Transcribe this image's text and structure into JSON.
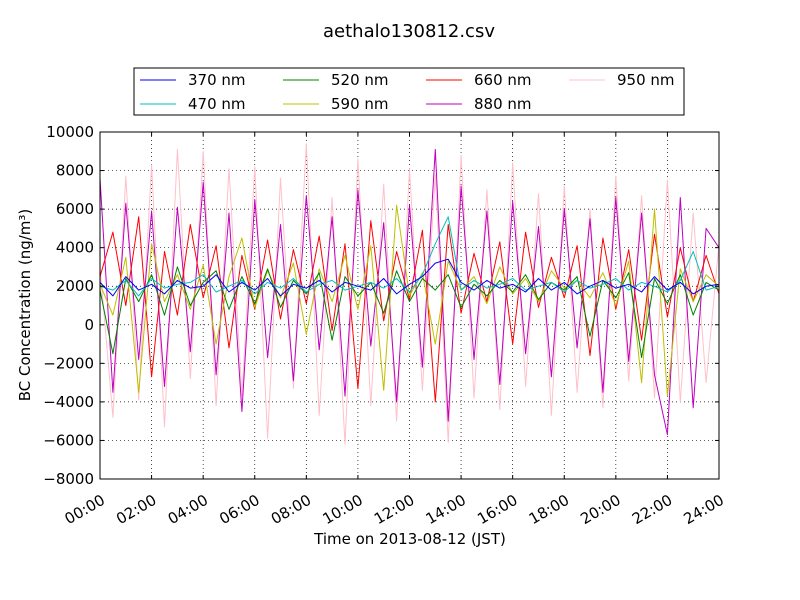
{
  "chart_data": {
    "type": "line",
    "title": "aethalo130812.csv",
    "xlabel": "Time on 2013-08-12 (JST)",
    "ylabel": "BC Concentration (ng/m³)",
    "x_range": [
      "00:00",
      "24:00"
    ],
    "x_ticks": [
      "00:00",
      "02:00",
      "04:00",
      "06:00",
      "08:00",
      "10:00",
      "12:00",
      "14:00",
      "16:00",
      "18:00",
      "20:00",
      "22:00",
      "24:00"
    ],
    "ylim": [
      -8000,
      10000
    ],
    "y_ticks": [
      "−8000",
      "−6000",
      "−4000",
      "−2000",
      "0",
      "2000",
      "4000",
      "6000",
      "8000",
      "10000"
    ],
    "grid": "dotted",
    "legend_placement": "top, above plot, 4 columns",
    "x_times": [
      "00:00",
      "00:30",
      "01:00",
      "01:30",
      "02:00",
      "02:30",
      "03:00",
      "03:30",
      "04:00",
      "04:30",
      "05:00",
      "05:30",
      "06:00",
      "06:30",
      "07:00",
      "07:30",
      "08:00",
      "08:30",
      "09:00",
      "09:30",
      "10:00",
      "10:30",
      "11:00",
      "11:30",
      "12:00",
      "12:30",
      "13:00",
      "13:30",
      "14:00",
      "14:30",
      "15:00",
      "15:30",
      "16:00",
      "16:30",
      "17:00",
      "17:30",
      "18:00",
      "18:30",
      "19:00",
      "19:30",
      "20:00",
      "20:30",
      "21:00",
      "21:30",
      "22:00",
      "22:30",
      "23:00",
      "23:30",
      "24:00"
    ],
    "series": [
      {
        "name": "370 nm",
        "color": "#0000ff",
        "values": [
          2200,
          1500,
          2500,
          1800,
          2100,
          1600,
          2300,
          1900,
          2000,
          2600,
          1700,
          2200,
          1800,
          2400,
          1500,
          2100,
          1900,
          2300,
          1700,
          2200,
          2000,
          1800,
          2400,
          1600,
          2100,
          2500,
          3200,
          3400,
          2200,
          1800,
          2300,
          1900,
          2100,
          1700,
          2400,
          1800,
          2200,
          1600,
          2000,
          2300,
          1900,
          2100,
          1700,
          2500,
          1800,
          2200,
          1600,
          2000,
          2100
        ]
      },
      {
        "name": "470 nm",
        "color": "#00bfbf",
        "values": [
          2000,
          1800,
          2300,
          1500,
          2400,
          1900,
          2100,
          2200,
          2600,
          1700,
          2000,
          2300,
          1600,
          2200,
          1900,
          2400,
          1700,
          2100,
          2300,
          1800,
          2000,
          2200,
          1900,
          2400,
          1700,
          2600,
          4200,
          5600,
          1800,
          2300,
          1900,
          2100,
          2400,
          1800,
          2000,
          2200,
          1700,
          2300,
          1900,
          2100,
          2400,
          1800,
          2200,
          2000,
          1700,
          2300,
          3800,
          1800,
          2000
        ]
      },
      {
        "name": "520 nm",
        "color": "#008000",
        "values": [
          1800,
          -1500,
          2400,
          1200,
          2600,
          500,
          3000,
          1000,
          2200,
          2800,
          800,
          2500,
          1100,
          2900,
          900,
          2300,
          1600,
          2700,
          -800,
          2500,
          1500,
          2200,
          600,
          2800,
          1200,
          2400,
          1800,
          2600,
          900,
          2100,
          1500,
          2300,
          1700,
          2600,
          1300,
          2200,
          1800,
          2500,
          -600,
          2300,
          1400,
          2700,
          -1700,
          2400,
          1100,
          2600,
          500,
          2200,
          1800
        ]
      },
      {
        "name": "590 nm",
        "color": "#bfbf00",
        "values": [
          2100,
          500,
          3500,
          -3500,
          4200,
          1200,
          2600,
          800,
          3100,
          -1000,
          2500,
          4500,
          900,
          2800,
          1400,
          3200,
          -500,
          2900,
          1200,
          3600,
          800,
          4100,
          -3400,
          6200,
          1500,
          2700,
          -1000,
          3300,
          1800,
          2500,
          1100,
          3000,
          1600,
          2400,
          1200,
          2800,
          1900,
          2300,
          1400,
          2700,
          1000,
          3300,
          -3000,
          6000,
          -3700,
          2900,
          1200,
          2600,
          2000
        ]
      },
      {
        "name": "660 nm",
        "color": "#ff0000",
        "values": [
          2500,
          4800,
          1000,
          5600,
          -2700,
          3800,
          500,
          5200,
          1400,
          4100,
          -1200,
          3600,
          800,
          4400,
          300,
          3900,
          1100,
          4600,
          -300,
          4200,
          -3300,
          5400,
          200,
          3800,
          1300,
          4900,
          -4000,
          5200,
          600,
          3700,
          1200,
          4300,
          -1000,
          4800,
          900,
          3500,
          1400,
          4100,
          -1600,
          4500,
          800,
          3900,
          -800,
          4700,
          400,
          4000,
          1200,
          3600,
          1600
        ]
      },
      {
        "name": "880 nm",
        "color": "#bf00bf",
        "values": [
          7600,
          -3500,
          6300,
          -1800,
          5900,
          -3200,
          6100,
          -1400,
          7400,
          -2600,
          5800,
          -4500,
          6500,
          -1700,
          5200,
          -2900,
          6700,
          -1300,
          5600,
          -3700,
          7000,
          -1100,
          5300,
          -4000,
          6200,
          -2200,
          9100,
          -5000,
          7200,
          -1800,
          5900,
          -3100,
          6400,
          -1500,
          5100,
          -2700,
          6000,
          -1200,
          5500,
          -3500,
          6600,
          -1900,
          5800,
          -2600,
          -5700,
          6600,
          -4300,
          5000,
          4000
        ]
      },
      {
        "name": "950 nm",
        "color": "#ffc0cb",
        "values": [
          3000,
          -4800,
          7700,
          -3900,
          8300,
          -5300,
          9100,
          -2800,
          9000,
          -4200,
          8100,
          -3700,
          8200,
          -5900,
          7600,
          -3300,
          9400,
          -4700,
          6600,
          -6200,
          8600,
          -4200,
          7300,
          -5000,
          8100,
          -3400,
          7800,
          -6100,
          8800,
          -3800,
          7000,
          -4400,
          8400,
          -3200,
          6800,
          -4700,
          7200,
          -3500,
          6000,
          -4300,
          7700,
          -2900,
          6700,
          -3800,
          7500,
          -4000,
          5800,
          -3000,
          4200
        ]
      }
    ]
  }
}
